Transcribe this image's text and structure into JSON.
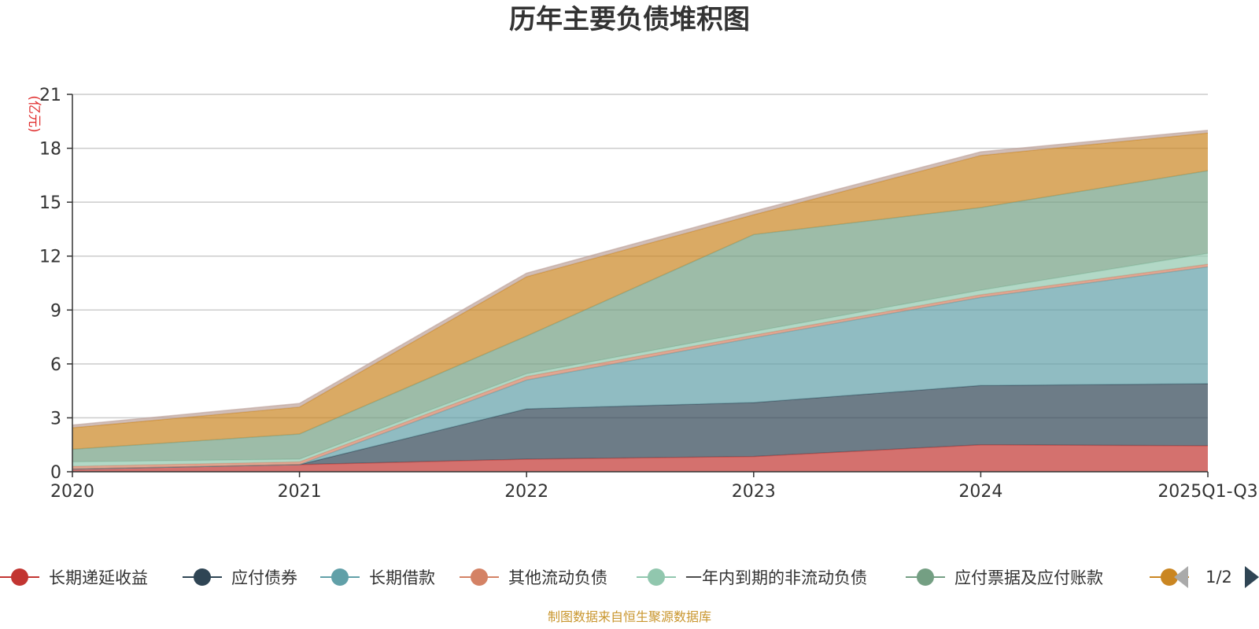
{
  "chart_data": {
    "type": "area",
    "stacked": true,
    "title": "历年主要负债堆积图",
    "unit_label": "(亿元)",
    "categories": [
      "2020",
      "2021",
      "2022",
      "2023",
      "2024",
      "2025Q1-Q3"
    ],
    "ylim": [
      0,
      21
    ],
    "yticks": [
      0,
      3,
      6,
      9,
      12,
      15,
      18,
      21
    ],
    "grid": true,
    "legend_position": "bottom",
    "series": [
      {
        "name": "长期递延收益",
        "color": "#c23531",
        "values": [
          0.15,
          0.4,
          0.7,
          0.85,
          1.5,
          1.45
        ]
      },
      {
        "name": "应付债券",
        "color": "#2f4554",
        "values": [
          0,
          0,
          2.8,
          3.0,
          3.3,
          3.45
        ]
      },
      {
        "name": "长期借款",
        "color": "#61a0a8",
        "values": [
          0,
          0,
          1.6,
          3.6,
          4.9,
          6.5
        ]
      },
      {
        "name": "其他流动负债",
        "color": "#d48265",
        "values": [
          0.15,
          0.15,
          0.2,
          0.15,
          0.15,
          0.15
        ]
      },
      {
        "name": "一年内到期的非流动负债",
        "color": "#91c7ae",
        "values": [
          0.25,
          0.15,
          0.15,
          0.2,
          0.25,
          0.6
        ]
      },
      {
        "name": "应付票据及应付账款",
        "color": "#749f83",
        "values": [
          0.7,
          1.4,
          2.1,
          5.4,
          4.6,
          4.6
        ]
      },
      {
        "name": "",
        "color": "#ca8622",
        "values": [
          1.2,
          1.5,
          3.3,
          1.1,
          2.9,
          2.1
        ]
      },
      {
        "name": "",
        "color": "#bda29a",
        "values": [
          0.15,
          0.2,
          0.2,
          0.2,
          0.2,
          0.15
        ]
      }
    ],
    "legend_visible_count": 7,
    "legend_page": "1/2",
    "source": "制图数据来自恒生聚源数据库"
  }
}
